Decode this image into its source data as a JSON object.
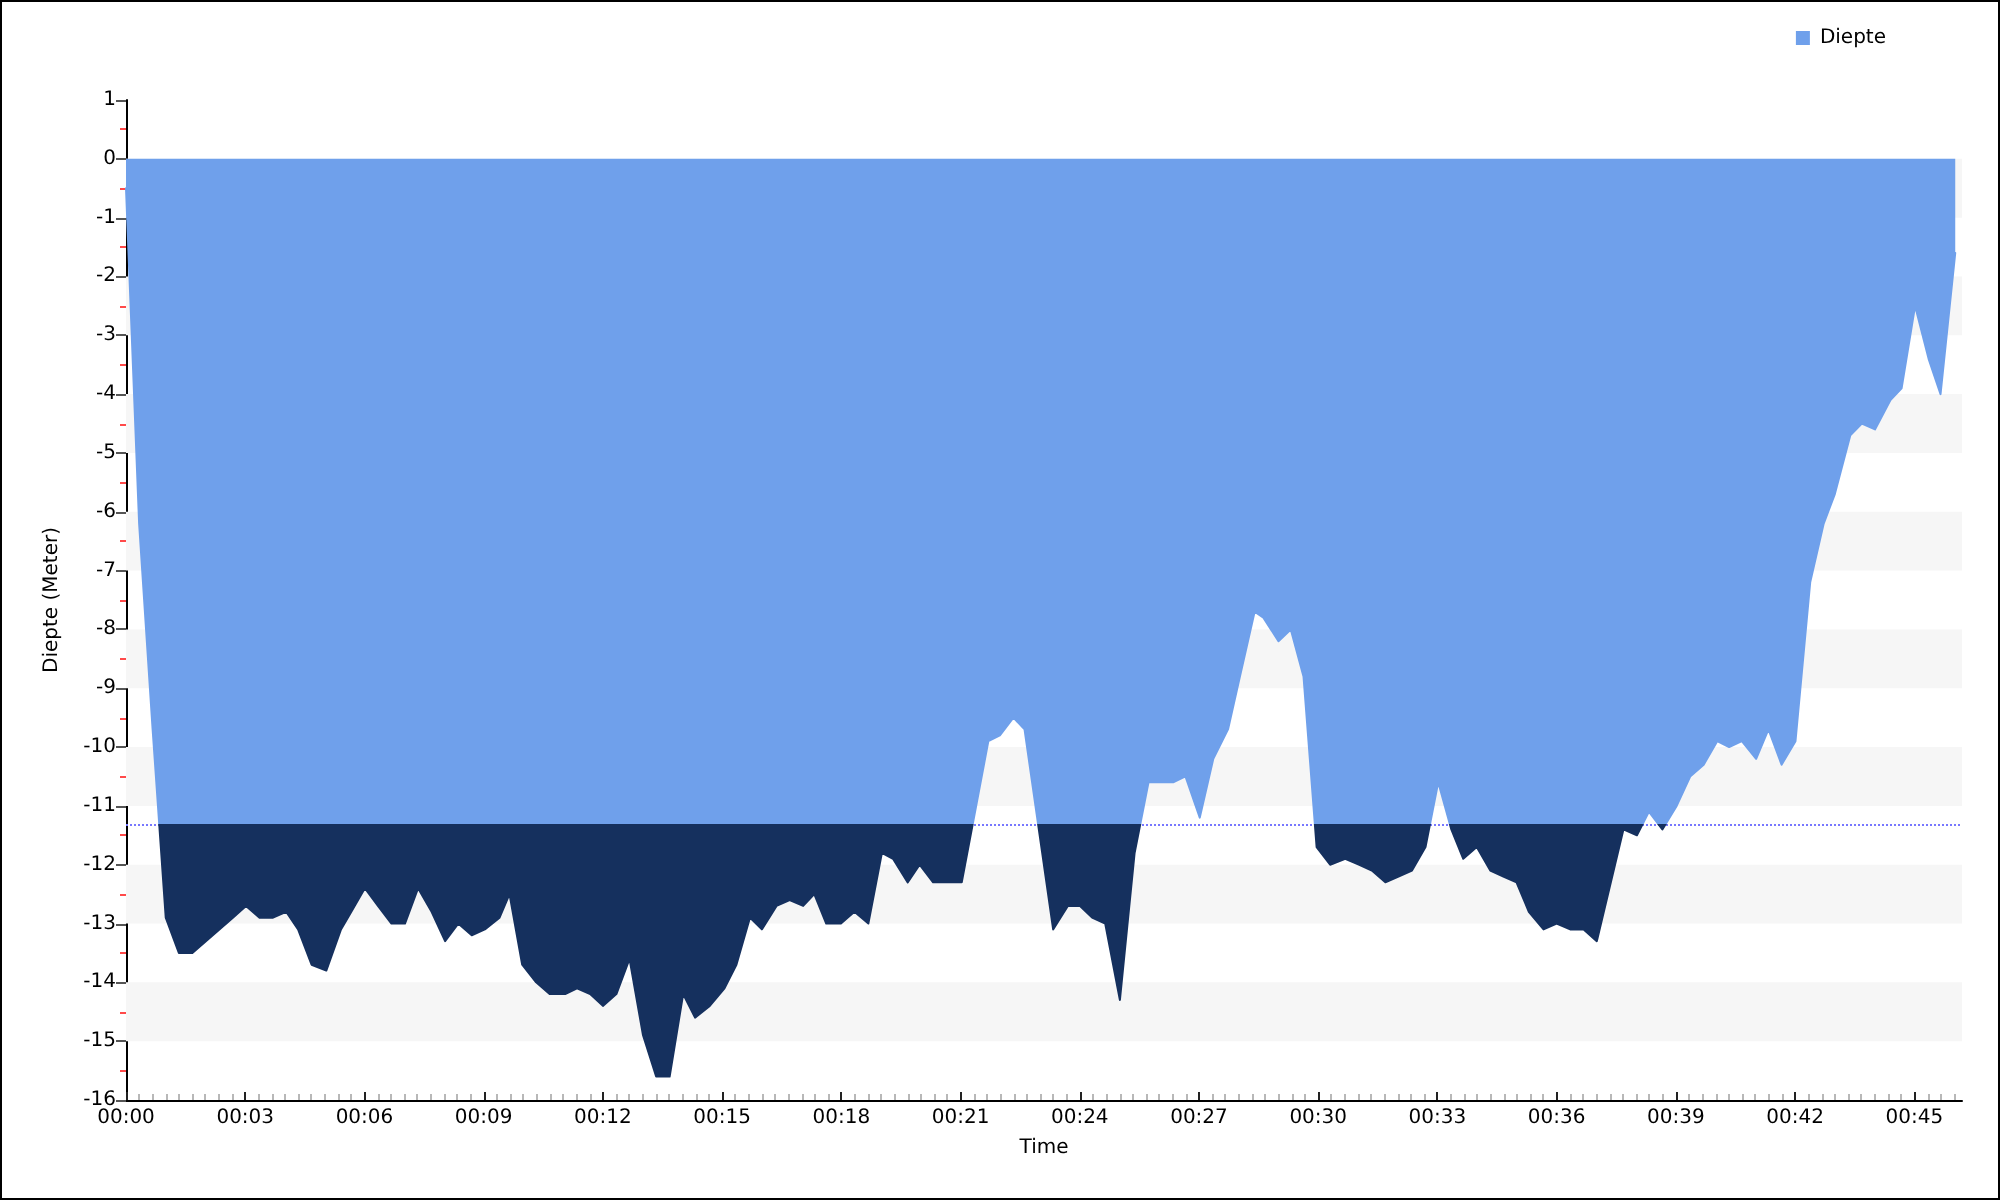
{
  "chart_data": {
    "type": "area",
    "xlabel": "Time",
    "ylabel": "Diepte (Meter)",
    "x": [
      0,
      0.33,
      0.67,
      1.0,
      1.33,
      1.67,
      2.01,
      2.35,
      2.69,
      3.02,
      3.36,
      3.7,
      4.03,
      4.33,
      4.67,
      5.04,
      5.41,
      5.67,
      6.01,
      6.34,
      6.68,
      7.02,
      7.35,
      7.69,
      8.03,
      8.36,
      8.7,
      9.03,
      9.4,
      9.65,
      9.97,
      10.32,
      10.66,
      11.05,
      11.35,
      11.68,
      12.0,
      12.34,
      12.67,
      13.01,
      13.34,
      13.68,
      14.02,
      14.32,
      14.69,
      15.06,
      15.36,
      15.7,
      16.0,
      16.37,
      16.7,
      17.04,
      17.32,
      17.62,
      17.99,
      18.33,
      18.68,
      19.02,
      19.3,
      19.67,
      19.97,
      20.31,
      20.64,
      21.03,
      21.7,
      21.99,
      22.33,
      22.61,
      23.33,
      23.7,
      24.0,
      24.31,
      24.64,
      25.01,
      25.38,
      25.73,
      26.35,
      26.66,
      27.02,
      27.36,
      27.73,
      28.03,
      28.4,
      28.62,
      29.0,
      29.31,
      29.63,
      29.96,
      30.3,
      30.68,
      31.02,
      31.35,
      31.69,
      32.02,
      32.36,
      32.7,
      33.02,
      33.35,
      33.65,
      33.99,
      34.33,
      34.66,
      34.99,
      35.3,
      35.67,
      36.0,
      36.34,
      36.68,
      37.01,
      37.68,
      38.02,
      38.32,
      38.66,
      39.02,
      39.36,
      39.7,
      40.04,
      40.34,
      40.66,
      41.02,
      41.33,
      41.66,
      42.01,
      42.38,
      42.72,
      43.0,
      43.39,
      43.68,
      44.01,
      44.4,
      44.68,
      45.02,
      45.36,
      45.66,
      46.03
    ],
    "series": [
      {
        "name": "Diepte",
        "color": "#6fa0eb",
        "values": [
          -0.5,
          -6.2,
          -9.7,
          -12.9,
          -13.5,
          -13.5,
          -13.3,
          -13.1,
          -12.9,
          -12.7,
          -12.9,
          -12.9,
          -12.8,
          -13.1,
          -13.7,
          -13.8,
          -13.1,
          -12.8,
          -12.4,
          -12.7,
          -13.0,
          -13.0,
          -12.4,
          -12.8,
          -13.3,
          -13.0,
          -13.2,
          -13.1,
          -12.9,
          -12.5,
          -13.7,
          -14.0,
          -14.2,
          -14.2,
          -14.1,
          -14.2,
          -14.4,
          -14.2,
          -13.6,
          -14.9,
          -15.6,
          -15.6,
          -14.2,
          -14.6,
          -14.4,
          -14.1,
          -13.7,
          -12.9,
          -13.1,
          -12.7,
          -12.6,
          -12.7,
          -12.5,
          -13.0,
          -13.0,
          -12.8,
          -13.0,
          -11.8,
          -11.9,
          -12.3,
          -12.0,
          -12.3,
          -12.3,
          -12.3,
          -9.9,
          -9.8,
          -9.5,
          -9.7,
          -13.1,
          -12.7,
          -12.7,
          -12.9,
          -13.0,
          -14.3,
          -11.8,
          -10.6,
          -10.6,
          -10.5,
          -11.2,
          -10.2,
          -9.7,
          -8.8,
          -7.7,
          -7.8,
          -8.2,
          -8.0,
          -8.8,
          -11.7,
          -12.0,
          -11.9,
          -12.0,
          -12.1,
          -12.3,
          -12.2,
          -12.1,
          -11.7,
          -10.6,
          -11.4,
          -11.9,
          -11.7,
          -12.1,
          -12.2,
          -12.3,
          -12.8,
          -13.1,
          -13.0,
          -13.1,
          -13.1,
          -13.3,
          -11.4,
          -11.5,
          -11.1,
          -11.4,
          -11.0,
          -10.5,
          -10.3,
          -9.9,
          -10.0,
          -9.9,
          -10.2,
          -9.7,
          -10.3,
          -9.9,
          -7.2,
          -6.2,
          -5.7,
          -4.7,
          -4.5,
          -4.6,
          -4.1,
          -3.9,
          -2.5,
          -3.4,
          -4.0,
          -1.6
        ]
      }
    ],
    "xlim": [
      0,
      46.2
    ],
    "xticks": [
      {
        "value": 0,
        "label": "00:00"
      },
      {
        "value": 3,
        "label": "00:03"
      },
      {
        "value": 6,
        "label": "00:06"
      },
      {
        "value": 9,
        "label": "00:09"
      },
      {
        "value": 12,
        "label": "00:12"
      },
      {
        "value": 15,
        "label": "00:15"
      },
      {
        "value": 18,
        "label": "00:18"
      },
      {
        "value": 21,
        "label": "00:21"
      },
      {
        "value": 24,
        "label": "00:24"
      },
      {
        "value": 27,
        "label": "00:27"
      },
      {
        "value": 30,
        "label": "00:30"
      },
      {
        "value": 33,
        "label": "00:33"
      },
      {
        "value": 36,
        "label": "00:36"
      },
      {
        "value": 39,
        "label": "00:39"
      },
      {
        "value": 42,
        "label": "00:42"
      },
      {
        "value": 45,
        "label": "00:45"
      }
    ],
    "ylim": [
      -16,
      1
    ],
    "yticks": [
      -16,
      -15,
      -14,
      -13,
      -12,
      -11,
      -10,
      -9,
      -8,
      -7,
      -6,
      -5,
      -4,
      -3,
      -2,
      -1,
      0,
      1
    ],
    "ref_lines": [
      {
        "axis": "y",
        "value": -11.3,
        "color": "#7878ff",
        "line_style": "dotted"
      }
    ],
    "bands": [
      {
        "axis": "y",
        "from": -15,
        "to": -14,
        "color": "#f6f6f6"
      },
      {
        "axis": "y",
        "from": -13,
        "to": -12,
        "color": "#f6f6f6"
      },
      {
        "axis": "y",
        "from": -11,
        "to": -10,
        "color": "#f6f6f6"
      },
      {
        "axis": "y",
        "from": -9,
        "to": -8,
        "color": "#f6f6f6"
      },
      {
        "axis": "y",
        "from": -7,
        "to": -6,
        "color": "#f6f6f6"
      },
      {
        "axis": "y",
        "from": -5,
        "to": -4,
        "color": "#f6f6f6"
      },
      {
        "axis": "y",
        "from": -3,
        "to": -2,
        "color": "#f6f6f6"
      },
      {
        "axis": "y",
        "from": -1,
        "to": 0,
        "color": "#f6f6f6"
      }
    ],
    "legend": "top right",
    "marker": "none"
  }
}
